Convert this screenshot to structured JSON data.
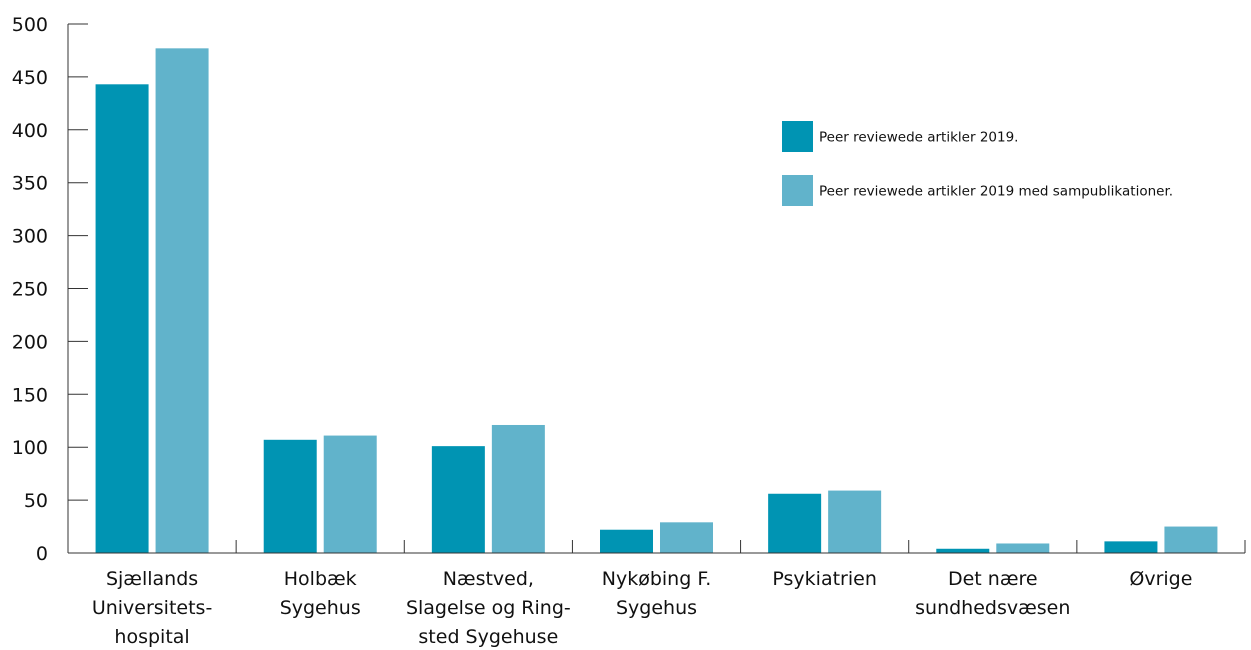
{
  "chart_data": {
    "type": "bar",
    "title": "",
    "xlabel": "",
    "ylabel": "",
    "ylim": [
      0,
      500
    ],
    "yticks": [
      "0",
      "50",
      "100",
      "150",
      "200",
      "250",
      "300",
      "350",
      "400",
      "450",
      "500"
    ],
    "grid": false,
    "legend_position": "top-right",
    "categories": [
      [
        "Sjællands",
        "Universitets-",
        "hospital"
      ],
      [
        "Holbæk",
        "Sygehus"
      ],
      [
        "Næstved,",
        "Slagelse og Ring-",
        "sted Sygehuse"
      ],
      [
        "Nykøbing F.",
        "Sygehus"
      ],
      [
        "Psykiatrien"
      ],
      [
        "Det nære",
        "sundhedsvæsen"
      ],
      [
        "Øvrige"
      ]
    ],
    "series": [
      {
        "name": "Peer reviewede artikler 2019.",
        "color": "#0094b3",
        "values": [
          443,
          107,
          101,
          22,
          56,
          4,
          11
        ]
      },
      {
        "name": "Peer reviewede artikler 2019 med sampublikationer.",
        "color": "#61b3cb",
        "values": [
          477,
          111,
          121,
          29,
          59,
          9,
          25
        ]
      }
    ]
  }
}
